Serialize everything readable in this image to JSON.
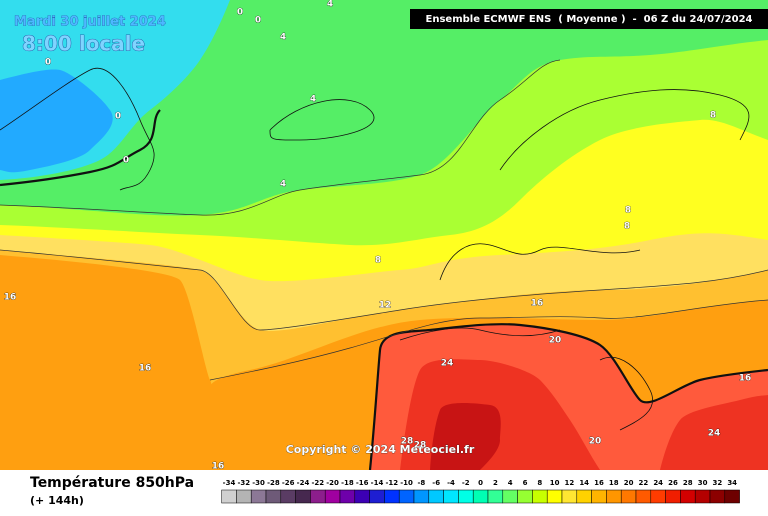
{
  "header": {
    "date": "Mardi 30 juillet 2024",
    "time": "8:00 locale",
    "run": "Ensemble ECMWF ENS  ( Moyenne )  -  06 Z du 24/07/2024"
  },
  "map": {
    "contour_labels": [
      0,
      0,
      4,
      4,
      4,
      0,
      0,
      4,
      0,
      8,
      8,
      8,
      8,
      12,
      16,
      16,
      16,
      16,
      16,
      20,
      20,
      24,
      24,
      28,
      28
    ],
    "copyright": "Copyright © 2024 Meteociel.fr"
  },
  "footer": {
    "title": "Température 850hPa",
    "lead": "(+ 144h)"
  },
  "legend": {
    "values": [
      -34,
      -32,
      -30,
      -28,
      -26,
      -24,
      -22,
      -20,
      -18,
      -16,
      -14,
      -12,
      -10,
      -8,
      -6,
      -4,
      -2,
      0,
      2,
      4,
      6,
      8,
      10,
      12,
      14,
      16,
      18,
      20,
      22,
      24,
      26,
      28,
      30,
      32,
      34
    ],
    "colors": [
      "#d0d0d0",
      "#b4b4b4",
      "#8c7896",
      "#6e5a78",
      "#5a3c64",
      "#46284f",
      "#8c1e8c",
      "#a000a0",
      "#6e00aa",
      "#3c00b4",
      "#1e1ed2",
      "#0032ff",
      "#0064ff",
      "#0096ff",
      "#00c8ff",
      "#00e6ff",
      "#00ffe6",
      "#00ffb4",
      "#32ff96",
      "#64ff64",
      "#96ff32",
      "#c8ff00",
      "#ffff00",
      "#ffe632",
      "#ffd200",
      "#ffb400",
      "#ff9600",
      "#ff7800",
      "#ff5a00",
      "#ff3c00",
      "#f01e00",
      "#d20000",
      "#b40000",
      "#8c0000",
      "#6e0000"
    ]
  }
}
